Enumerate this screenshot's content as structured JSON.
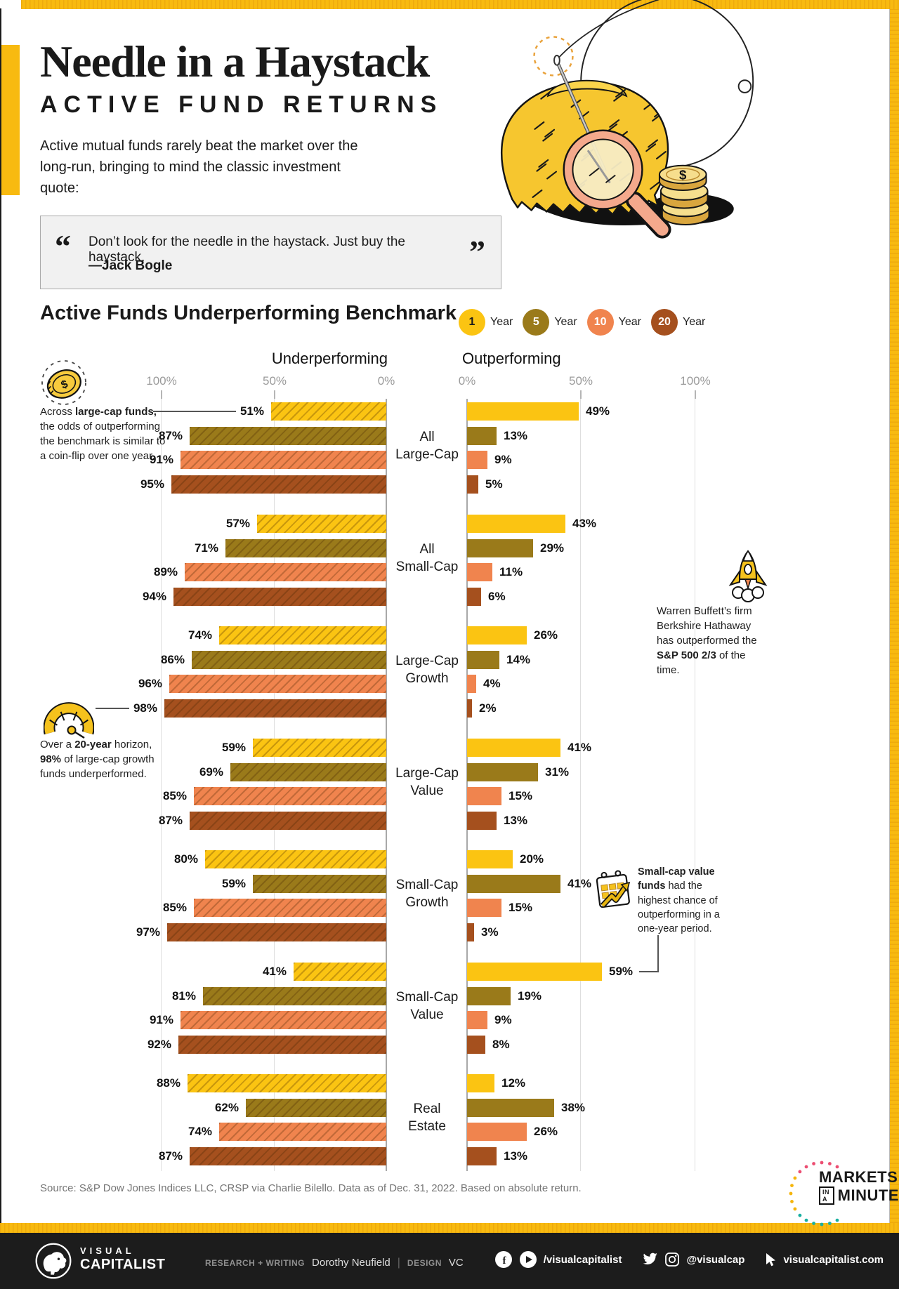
{
  "frame": {
    "accent": "#F8BA10"
  },
  "header": {
    "title": "Needle in a Haystack",
    "subtitle": "ACTIVE FUND RETURNS",
    "intro": "Active mutual funds rarely beat the market over the\nlong-run, bringing to mind the classic investment quote:",
    "quote_open": "“",
    "quote": "Don’t look for the needle in the haystack. Just buy the haystack.",
    "quote_close": "”",
    "quote_attribution": "—Jack Bogle"
  },
  "chart_data": {
    "type": "bar",
    "title": "Active Funds Underperforming Benchmark",
    "left_header": "Underperforming",
    "right_header": "Outperforming",
    "left_axis_ticks": [
      "100%",
      "50%",
      "0%"
    ],
    "right_axis_ticks": [
      "0%",
      "50%",
      "100%"
    ],
    "xlim_left": [
      100,
      0
    ],
    "xlim_right": [
      0,
      100
    ],
    "legend": [
      {
        "number": "1",
        "label": "Year",
        "color": "#FBC412",
        "number_color": "#1a1a1a"
      },
      {
        "number": "5",
        "label": "Year",
        "color": "#9A7A1A",
        "number_color": "#ffffff"
      },
      {
        "number": "10",
        "label": "Year",
        "color": "#F0844E",
        "number_color": "#ffffff"
      },
      {
        "number": "20",
        "label": "Year",
        "color": "#A5501E",
        "number_color": "#ffffff"
      }
    ],
    "series_years": [
      "1 Year",
      "5 Year",
      "10 Year",
      "20 Year"
    ],
    "categories": [
      "All\nLarge-Cap",
      "All\nSmall-Cap",
      "Large-Cap\nGrowth",
      "Large-Cap\nValue",
      "Small-Cap\nGrowth",
      "Small-Cap\nValue",
      "Real\nEstate"
    ],
    "underperforming": [
      [
        51,
        87,
        91,
        95
      ],
      [
        57,
        71,
        89,
        94
      ],
      [
        74,
        86,
        96,
        98
      ],
      [
        59,
        69,
        85,
        87
      ],
      [
        80,
        59,
        85,
        97
      ],
      [
        41,
        81,
        91,
        92
      ],
      [
        88,
        62,
        74,
        87
      ]
    ],
    "outperforming": [
      [
        49,
        13,
        9,
        5
      ],
      [
        43,
        29,
        11,
        6
      ],
      [
        26,
        14,
        4,
        2
      ],
      [
        41,
        31,
        15,
        13
      ],
      [
        20,
        41,
        15,
        3
      ],
      [
        59,
        19,
        9,
        8
      ],
      [
        12,
        38,
        26,
        13
      ]
    ]
  },
  "annotations": {
    "coin": {
      "parts": [
        {
          "t": "Across "
        },
        {
          "t": "large-cap funds,",
          "b": true
        },
        {
          "t": " the odds of outperforming the benchmark is similar to a coin-flip over one year."
        }
      ]
    },
    "gauge": {
      "parts": [
        {
          "t": "Over a "
        },
        {
          "t": "20-year",
          "b": true
        },
        {
          "t": " horizon, "
        },
        {
          "t": "98%",
          "b": true
        },
        {
          "t": " of large-cap growth funds underperformed."
        }
      ]
    },
    "rocket": {
      "parts": [
        {
          "t": "Warren Buffett’s firm Berkshire Hathaway has outperformed the "
        },
        {
          "t": "S&P 500 2/3",
          "b": true
        },
        {
          "t": " of the time."
        }
      ]
    },
    "calendar": {
      "parts": [
        {
          "t": "Small-cap value funds",
          "b": true
        },
        {
          "t": " had the highest chance of outperforming in a one-year period."
        }
      ]
    }
  },
  "source": "Source: S&P Dow Jones Indices LLC, CRSP via Charlie Bilello. Data as of Dec. 31, 2022. Based on absolute return.",
  "badge": {
    "line1": "MARKETS",
    "line2a": "IN A",
    "line2b": "MINUTE"
  },
  "footer": {
    "logo_line1": "VISUAL",
    "logo_line2": "CAPITALIST",
    "credit_label1": "RESEARCH + WRITING",
    "credit_name1": "Dorothy Neufield",
    "divider": "|",
    "credit_label2": "DESIGN",
    "credit_name2": "VC",
    "social_handle1": "/visualcapitalist",
    "social_handle2": "@visualcap",
    "website": "visualcapitalist.com"
  }
}
